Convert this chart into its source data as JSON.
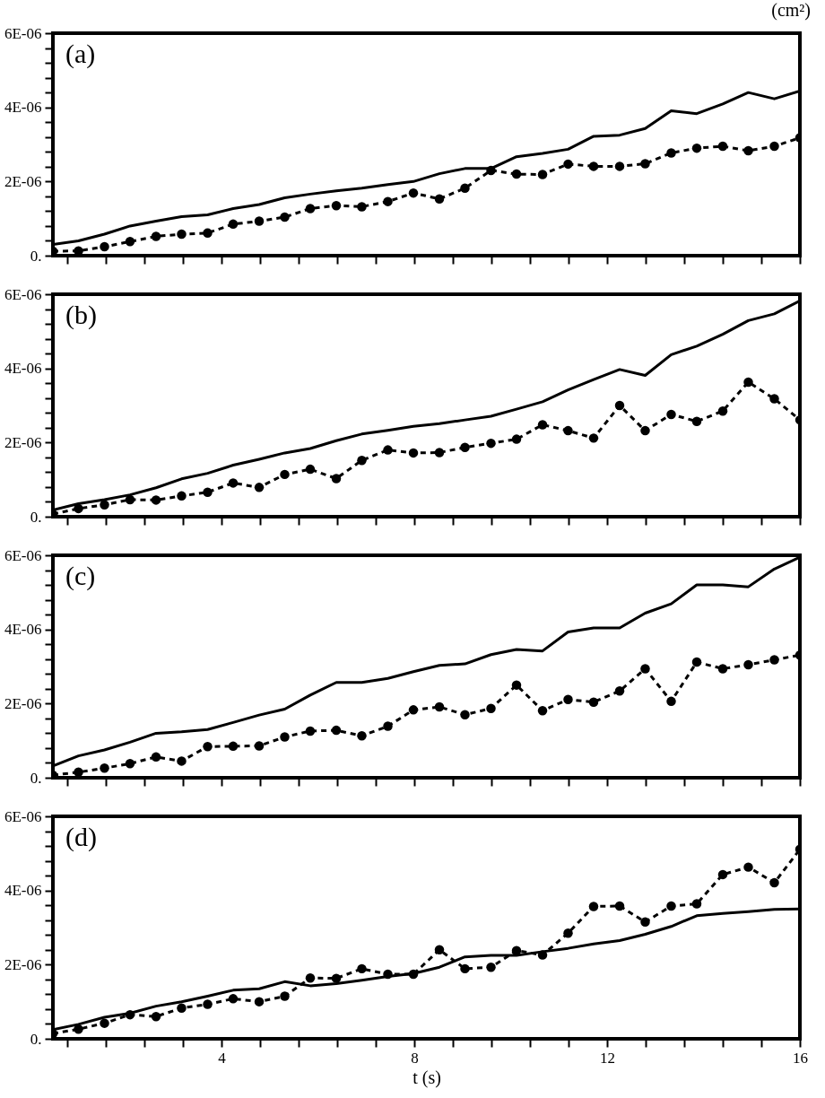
{
  "chart_data": [
    {
      "type": "line",
      "ylabel": "(cm²)",
      "annotations": [
        "(a)"
      ],
      "tick_labels": "y",
      "x": [
        0.5,
        1.03,
        1.57,
        2.1,
        2.64,
        3.17,
        3.71,
        4.24,
        4.78,
        5.31,
        5.84,
        6.38,
        6.91,
        7.45,
        7.98,
        8.52,
        9.05,
        9.59,
        10.12,
        10.66,
        11.19,
        11.72,
        12.26,
        12.79,
        13.33,
        13.86,
        14.4,
        14.93,
        15.47,
        16
      ],
      "series": [
        {
          "color": "#000000",
          "line_style": "solid",
          "marker": "none",
          "values": [
            3e-07,
            4e-07,
            5.8e-07,
            8e-07,
            9.3e-07,
            1.05e-06,
            1.1e-06,
            1.27e-06,
            1.38e-06,
            1.56e-06,
            1.66e-06,
            1.75e-06,
            1.82e-06,
            1.92e-06,
            2e-06,
            2.21e-06,
            2.35e-06,
            2.35e-06,
            2.67e-06,
            2.76e-06,
            2.87e-06,
            3.22e-06,
            3.25e-06,
            3.43e-06,
            3.91e-06,
            3.83e-06,
            4.09e-06,
            4.4e-06,
            4.23e-06,
            4.44e-06
          ]
        },
        {
          "color": "#000000",
          "line_style": "dashed",
          "marker": "circle",
          "values": [
            1.2e-07,
            1.3e-07,
            2.4e-07,
            3.8e-07,
            5.2e-07,
            5.8e-07,
            6.1e-07,
            8.5e-07,
            9.3e-07,
            1.04e-06,
            1.27e-06,
            1.35e-06,
            1.32e-06,
            1.46e-06,
            1.69e-06,
            1.53e-06,
            1.82e-06,
            2.3e-06,
            2.2e-06,
            2.19e-06,
            2.47e-06,
            2.41e-06,
            2.41e-06,
            2.48e-06,
            2.77e-06,
            2.9e-06,
            2.95e-06,
            2.83e-06,
            2.95e-06,
            3.18e-06
          ]
        }
      ],
      "xlim": [
        0.5,
        16
      ],
      "ylim": [
        0,
        6e-06
      ],
      "xticks": [
        {
          "value": 0.8,
          "label": null
        },
        {
          "value": 1.6,
          "label": null
        },
        {
          "value": 2.4,
          "label": null
        },
        {
          "value": 3.2,
          "label": null
        },
        4,
        {
          "value": 4.8,
          "label": null
        },
        {
          "value": 5.6,
          "label": null
        },
        {
          "value": 6.4,
          "label": null
        },
        {
          "value": 7.2,
          "label": null
        },
        8,
        {
          "value": 8.8,
          "label": null
        },
        {
          "value": 9.6,
          "label": null
        },
        {
          "value": 10.4,
          "label": null
        },
        {
          "value": 11.2,
          "label": null
        },
        12,
        {
          "value": 12.8,
          "label": null
        },
        {
          "value": 13.6,
          "label": null
        },
        {
          "value": 14.4,
          "label": null
        },
        {
          "value": 15.2,
          "label": null
        },
        16
      ],
      "yticks": [
        {
          "value": 0,
          "label": "0."
        },
        {
          "value": 4e-07,
          "label": null
        },
        {
          "value": 8e-07,
          "label": null
        },
        {
          "value": 1.2e-06,
          "label": null
        },
        {
          "value": 1.6e-06,
          "label": null
        },
        {
          "value": 2e-06,
          "label": "2E-06"
        },
        {
          "value": 2.4e-06,
          "label": null
        },
        {
          "value": 2.8e-06,
          "label": null
        },
        {
          "value": 3.2e-06,
          "label": null
        },
        {
          "value": 3.6e-06,
          "label": null
        },
        {
          "value": 4e-06,
          "label": "4E-06"
        },
        {
          "value": 4.4e-06,
          "label": null
        },
        {
          "value": 4.8e-06,
          "label": null
        },
        {
          "value": 5.2e-06,
          "label": null
        },
        {
          "value": 5.6e-06,
          "label": null
        },
        {
          "value": 6e-06,
          "label": "6E-06"
        }
      ]
    },
    {
      "type": "line",
      "annotations": [
        "(b)"
      ],
      "tick_labels": "y",
      "x": [
        0.5,
        1.03,
        1.57,
        2.1,
        2.64,
        3.17,
        3.71,
        4.24,
        4.78,
        5.31,
        5.84,
        6.38,
        6.91,
        7.45,
        7.98,
        8.52,
        9.05,
        9.59,
        10.12,
        10.66,
        11.19,
        11.72,
        12.26,
        12.79,
        13.33,
        13.86,
        14.4,
        14.93,
        15.47,
        16
      ],
      "series": [
        {
          "color": "#000000",
          "line_style": "solid",
          "marker": "none",
          "values": [
            1.8e-07,
            3.5e-07,
            4.6e-07,
            5.9e-07,
            7.8e-07,
            1.02e-06,
            1.17e-06,
            1.39e-06,
            1.55e-06,
            1.72e-06,
            1.84e-06,
            2.05e-06,
            2.23e-06,
            2.33e-06,
            2.44e-06,
            2.51e-06,
            2.61e-06,
            2.71e-06,
            2.9e-06,
            3.1e-06,
            3.42e-06,
            3.7e-06,
            3.97e-06,
            3.81e-06,
            4.37e-06,
            4.6e-06,
            4.92e-06,
            5.29e-06,
            5.47e-06,
            5.82e-06
          ]
        },
        {
          "color": "#000000",
          "line_style": "dashed",
          "marker": "circle",
          "values": [
            7e-08,
            2.2e-07,
            3.2e-07,
            4.6e-07,
            4.5e-07,
            5.6e-07,
            6.6e-07,
            9.1e-07,
            7.9e-07,
            1.14e-06,
            1.28e-06,
            1.03e-06,
            1.52e-06,
            1.8e-06,
            1.72e-06,
            1.73e-06,
            1.87e-06,
            1.98e-06,
            2.09e-06,
            2.48e-06,
            2.32e-06,
            2.12e-06,
            3e-06,
            2.32e-06,
            2.76e-06,
            2.57e-06,
            2.85e-06,
            3.63e-06,
            3.18e-06,
            2.61e-06
          ]
        }
      ],
      "xlim": [
        0.5,
        16
      ],
      "ylim": [
        0,
        6e-06
      ],
      "xticks": [
        {
          "value": 0.8,
          "label": null
        },
        {
          "value": 1.6,
          "label": null
        },
        {
          "value": 2.4,
          "label": null
        },
        {
          "value": 3.2,
          "label": null
        },
        4,
        {
          "value": 4.8,
          "label": null
        },
        {
          "value": 5.6,
          "label": null
        },
        {
          "value": 6.4,
          "label": null
        },
        {
          "value": 7.2,
          "label": null
        },
        8,
        {
          "value": 8.8,
          "label": null
        },
        {
          "value": 9.6,
          "label": null
        },
        {
          "value": 10.4,
          "label": null
        },
        {
          "value": 11.2,
          "label": null
        },
        12,
        {
          "value": 12.8,
          "label": null
        },
        {
          "value": 13.6,
          "label": null
        },
        {
          "value": 14.4,
          "label": null
        },
        {
          "value": 15.2,
          "label": null
        },
        16
      ],
      "yticks": [
        {
          "value": 0,
          "label": "0."
        },
        {
          "value": 4e-07,
          "label": null
        },
        {
          "value": 8e-07,
          "label": null
        },
        {
          "value": 1.2e-06,
          "label": null
        },
        {
          "value": 1.6e-06,
          "label": null
        },
        {
          "value": 2e-06,
          "label": "2E-06"
        },
        {
          "value": 2.4e-06,
          "label": null
        },
        {
          "value": 2.8e-06,
          "label": null
        },
        {
          "value": 3.2e-06,
          "label": null
        },
        {
          "value": 3.6e-06,
          "label": null
        },
        {
          "value": 4e-06,
          "label": "4E-06"
        },
        {
          "value": 4.4e-06,
          "label": null
        },
        {
          "value": 4.8e-06,
          "label": null
        },
        {
          "value": 5.2e-06,
          "label": null
        },
        {
          "value": 5.6e-06,
          "label": null
        },
        {
          "value": 6e-06,
          "label": "6E-06"
        }
      ]
    },
    {
      "type": "line",
      "annotations": [
        "(c)"
      ],
      "tick_labels": "y",
      "x": [
        0.5,
        1.03,
        1.57,
        2.1,
        2.64,
        3.17,
        3.71,
        4.24,
        4.78,
        5.31,
        5.84,
        6.38,
        6.91,
        7.45,
        7.98,
        8.52,
        9.05,
        9.59,
        10.12,
        10.66,
        11.19,
        11.72,
        12.26,
        12.79,
        13.33,
        13.86,
        14.4,
        14.93,
        15.47,
        16
      ],
      "series": [
        {
          "color": "#000000",
          "line_style": "solid",
          "marker": "none",
          "values": [
            3.2e-07,
            5.9e-07,
            7.5e-07,
            9.6e-07,
            1.2e-06,
            1.24e-06,
            1.3e-06,
            1.49e-06,
            1.69e-06,
            1.85e-06,
            2.23e-06,
            2.57e-06,
            2.57e-06,
            2.68e-06,
            2.86e-06,
            3.03e-06,
            3.07e-06,
            3.32e-06,
            3.46e-06,
            3.42e-06,
            3.93e-06,
            4.04e-06,
            4.04e-06,
            4.44e-06,
            4.69e-06,
            5.2e-06,
            5.2e-06,
            5.15e-06,
            5.63e-06,
            5.95e-06
          ]
        },
        {
          "color": "#000000",
          "line_style": "dashed",
          "marker": "circle",
          "values": [
            7e-08,
            1.5e-07,
            2.6e-07,
            3.8e-07,
            5.6e-07,
            4.5e-07,
            8.4e-07,
            8.5e-07,
            8.6e-07,
            1.1e-06,
            1.26e-06,
            1.28e-06,
            1.13e-06,
            1.39e-06,
            1.83e-06,
            1.91e-06,
            1.7e-06,
            1.87e-06,
            2.5e-06,
            1.81e-06,
            2.11e-06,
            2.04e-06,
            2.34e-06,
            2.94e-06,
            2.06e-06,
            3.12e-06,
            2.94e-06,
            3.05e-06,
            3.18e-06,
            3.31e-06
          ]
        }
      ],
      "xlim": [
        0.5,
        16
      ],
      "ylim": [
        0,
        6e-06
      ],
      "xticks": [
        {
          "value": 0.8,
          "label": null
        },
        {
          "value": 1.6,
          "label": null
        },
        {
          "value": 2.4,
          "label": null
        },
        {
          "value": 3.2,
          "label": null
        },
        4,
        {
          "value": 4.8,
          "label": null
        },
        {
          "value": 5.6,
          "label": null
        },
        {
          "value": 6.4,
          "label": null
        },
        {
          "value": 7.2,
          "label": null
        },
        8,
        {
          "value": 8.8,
          "label": null
        },
        {
          "value": 9.6,
          "label": null
        },
        {
          "value": 10.4,
          "label": null
        },
        {
          "value": 11.2,
          "label": null
        },
        12,
        {
          "value": 12.8,
          "label": null
        },
        {
          "value": 13.6,
          "label": null
        },
        {
          "value": 14.4,
          "label": null
        },
        {
          "value": 15.2,
          "label": null
        },
        16
      ],
      "yticks": [
        {
          "value": 0,
          "label": "0."
        },
        {
          "value": 4e-07,
          "label": null
        },
        {
          "value": 8e-07,
          "label": null
        },
        {
          "value": 1.2e-06,
          "label": null
        },
        {
          "value": 1.6e-06,
          "label": null
        },
        {
          "value": 2e-06,
          "label": "2E-06"
        },
        {
          "value": 2.4e-06,
          "label": null
        },
        {
          "value": 2.8e-06,
          "label": null
        },
        {
          "value": 3.2e-06,
          "label": null
        },
        {
          "value": 3.6e-06,
          "label": null
        },
        {
          "value": 4e-06,
          "label": "4E-06"
        },
        {
          "value": 4.4e-06,
          "label": null
        },
        {
          "value": 4.8e-06,
          "label": null
        },
        {
          "value": 5.2e-06,
          "label": null
        },
        {
          "value": 5.6e-06,
          "label": null
        },
        {
          "value": 6e-06,
          "label": "6E-06"
        }
      ]
    },
    {
      "type": "line",
      "annotations": [
        "(d)"
      ],
      "xlabel": "t (s)",
      "x": [
        0.5,
        1.03,
        1.57,
        2.1,
        2.64,
        3.17,
        3.71,
        4.24,
        4.78,
        5.31,
        5.84,
        6.38,
        6.91,
        7.45,
        7.98,
        8.52,
        9.05,
        9.59,
        10.12,
        10.66,
        11.19,
        11.72,
        12.26,
        12.79,
        13.33,
        13.86,
        14.4,
        14.93,
        15.47,
        16
      ],
      "series": [
        {
          "color": "#000000",
          "line_style": "solid",
          "marker": "none",
          "values": [
            2.5e-07,
            3.9e-07,
            5.8e-07,
            6.9e-07,
            8.8e-07,
            1e-06,
            1.15e-06,
            1.31e-06,
            1.35e-06,
            1.54e-06,
            1.43e-06,
            1.49e-06,
            1.58e-06,
            1.68e-06,
            1.76e-06,
            1.93e-06,
            2.21e-06,
            2.25e-06,
            2.25e-06,
            2.35e-06,
            2.44e-06,
            2.56e-06,
            2.65e-06,
            2.82e-06,
            3.03e-06,
            3.32e-06,
            3.38e-06,
            3.43e-06,
            3.49e-06,
            3.5e-06
          ]
        },
        {
          "color": "#000000",
          "line_style": "dashed",
          "marker": "circle",
          "values": [
            1.4e-07,
            2.6e-07,
            4.2e-07,
            6.5e-07,
            6e-07,
            8.3e-07,
            9.3e-07,
            1.08e-06,
            1e-06,
            1.15e-06,
            1.64e-06,
            1.63e-06,
            1.89e-06,
            1.74e-06,
            1.74e-06,
            2.4e-06,
            1.89e-06,
            1.93e-06,
            2.38e-06,
            2.26e-06,
            2.85e-06,
            3.57e-06,
            3.58e-06,
            3.15e-06,
            3.58e-06,
            3.64e-06,
            4.43e-06,
            4.63e-06,
            4.21e-06,
            5.11e-06
          ]
        }
      ],
      "xlim": [
        0.5,
        16
      ],
      "ylim": [
        0,
        6e-06
      ],
      "xticks": [
        {
          "value": 0.8,
          "label": null
        },
        {
          "value": 1.6,
          "label": null
        },
        {
          "value": 2.4,
          "label": null
        },
        {
          "value": 3.2,
          "label": null
        },
        4,
        {
          "value": 4.8,
          "label": null
        },
        {
          "value": 5.6,
          "label": null
        },
        {
          "value": 6.4,
          "label": null
        },
        {
          "value": 7.2,
          "label": null
        },
        8,
        {
          "value": 8.8,
          "label": null
        },
        {
          "value": 9.6,
          "label": null
        },
        {
          "value": 10.4,
          "label": null
        },
        {
          "value": 11.2,
          "label": null
        },
        12,
        {
          "value": 12.8,
          "label": null
        },
        {
          "value": 13.6,
          "label": null
        },
        {
          "value": 14.4,
          "label": null
        },
        {
          "value": 15.2,
          "label": null
        },
        16
      ],
      "yticks": [
        {
          "value": 0,
          "label": "0."
        },
        {
          "value": 4e-07,
          "label": null
        },
        {
          "value": 8e-07,
          "label": null
        },
        {
          "value": 1.2e-06,
          "label": null
        },
        {
          "value": 1.6e-06,
          "label": null
        },
        {
          "value": 2e-06,
          "label": "2E-06"
        },
        {
          "value": 2.4e-06,
          "label": null
        },
        {
          "value": 2.8e-06,
          "label": null
        },
        {
          "value": 3.2e-06,
          "label": null
        },
        {
          "value": 3.6e-06,
          "label": null
        },
        {
          "value": 4e-06,
          "label": "4E-06"
        },
        {
          "value": 4.4e-06,
          "label": null
        },
        {
          "value": 4.8e-06,
          "label": null
        },
        {
          "value": 5.2e-06,
          "label": null
        },
        {
          "value": 5.6e-06,
          "label": null
        },
        {
          "value": 6e-06,
          "label": "6E-06"
        }
      ]
    }
  ]
}
